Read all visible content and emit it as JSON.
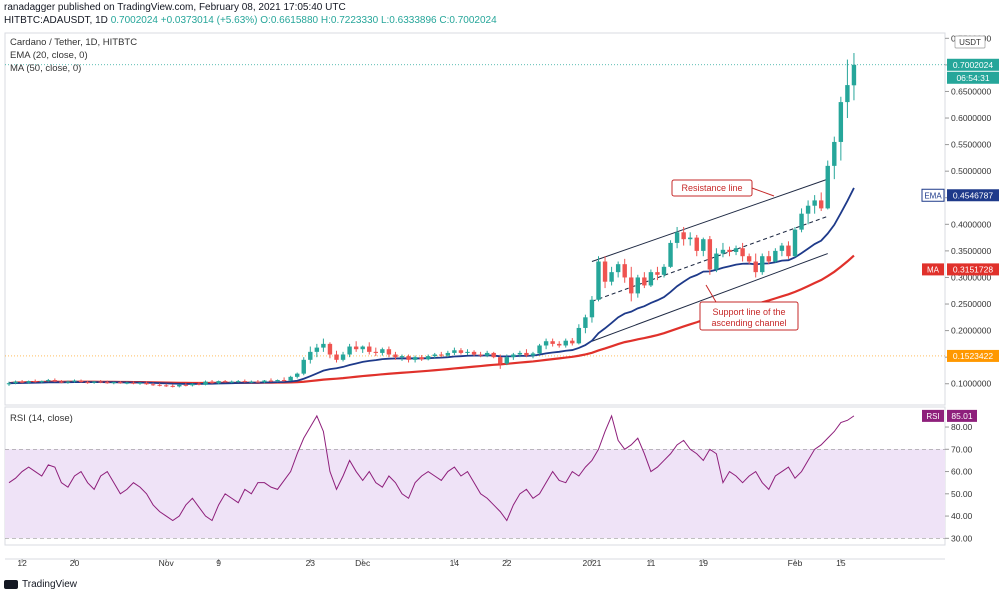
{
  "header": {
    "published_line": "ranadagger published on TradingView.com, February 08, 2021 17:05:40 UTC",
    "symbol": "HITBTC:ADAUSDT, 1D",
    "last": "0.7002024",
    "change": "+0.0373014 (+5.63%)",
    "open": "O:0.6615880",
    "high": "H:0.7223330",
    "low": "L:0.6333896",
    "close": "C:0.7002024"
  },
  "legend": {
    "title": "Cardano / Tether, 1D, HITBTC",
    "ema": "EMA (20, close, 0)",
    "ma": "MA (50, close, 0)",
    "rsi": "RSI (14, close)"
  },
  "footer": {
    "brand": "TradingView"
  },
  "colors": {
    "up": "#26a69a",
    "down": "#ef5350",
    "ema": "#1e3a8a",
    "ma": "#e0312b",
    "rsi_line": "#8e1f7b",
    "rsi_band": "#efe3f7",
    "price_tag": "#26a69a",
    "support": "#ff9800"
  },
  "chart_data": [
    {
      "type": "candlestick",
      "title": "Cardano / Tether, 1D, HITBTC",
      "yunit": "USDT",
      "ylim": [
        0.06,
        0.76
      ],
      "y_ticks": [
        "0.1000000",
        "0.1500000",
        "0.2000000",
        "0.2500000",
        "0.3000000",
        "0.3500000",
        "0.4000000",
        "0.4500000",
        "0.5000000",
        "0.5500000",
        "0.6000000",
        "0.6500000",
        "0.7000000",
        "0.7500000"
      ],
      "x_ticks": [
        "12",
        "20",
        "Nov",
        "9",
        "23",
        "Dec",
        "14",
        "22",
        "2021",
        "11",
        "19",
        "Feb",
        "15"
      ],
      "candles": [
        {
          "o": 0.099,
          "h": 0.104,
          "l": 0.096,
          "c": 0.101
        },
        {
          "o": 0.101,
          "h": 0.106,
          "l": 0.099,
          "c": 0.104
        },
        {
          "o": 0.104,
          "h": 0.107,
          "l": 0.101,
          "c": 0.102
        },
        {
          "o": 0.102,
          "h": 0.106,
          "l": 0.1,
          "c": 0.105
        },
        {
          "o": 0.105,
          "h": 0.108,
          "l": 0.102,
          "c": 0.103
        },
        {
          "o": 0.103,
          "h": 0.106,
          "l": 0.101,
          "c": 0.105
        },
        {
          "o": 0.105,
          "h": 0.109,
          "l": 0.103,
          "c": 0.107
        },
        {
          "o": 0.107,
          "h": 0.11,
          "l": 0.103,
          "c": 0.104
        },
        {
          "o": 0.104,
          "h": 0.107,
          "l": 0.101,
          "c": 0.102
        },
        {
          "o": 0.102,
          "h": 0.106,
          "l": 0.1,
          "c": 0.104
        },
        {
          "o": 0.104,
          "h": 0.108,
          "l": 0.102,
          "c": 0.106
        },
        {
          "o": 0.106,
          "h": 0.108,
          "l": 0.102,
          "c": 0.103
        },
        {
          "o": 0.103,
          "h": 0.106,
          "l": 0.1,
          "c": 0.102
        },
        {
          "o": 0.102,
          "h": 0.105,
          "l": 0.1,
          "c": 0.104
        },
        {
          "o": 0.104,
          "h": 0.107,
          "l": 0.101,
          "c": 0.103
        },
        {
          "o": 0.103,
          "h": 0.106,
          "l": 0.1,
          "c": 0.101
        },
        {
          "o": 0.101,
          "h": 0.104,
          "l": 0.099,
          "c": 0.103
        },
        {
          "o": 0.103,
          "h": 0.105,
          "l": 0.1,
          "c": 0.101
        },
        {
          "o": 0.101,
          "h": 0.104,
          "l": 0.099,
          "c": 0.102
        },
        {
          "o": 0.102,
          "h": 0.104,
          "l": 0.099,
          "c": 0.1
        },
        {
          "o": 0.1,
          "h": 0.103,
          "l": 0.098,
          "c": 0.102
        },
        {
          "o": 0.102,
          "h": 0.104,
          "l": 0.098,
          "c": 0.099
        },
        {
          "o": 0.099,
          "h": 0.102,
          "l": 0.096,
          "c": 0.098
        },
        {
          "o": 0.098,
          "h": 0.101,
          "l": 0.095,
          "c": 0.097
        },
        {
          "o": 0.097,
          "h": 0.1,
          "l": 0.094,
          "c": 0.096
        },
        {
          "o": 0.096,
          "h": 0.099,
          "l": 0.093,
          "c": 0.095
        },
        {
          "o": 0.095,
          "h": 0.099,
          "l": 0.093,
          "c": 0.098
        },
        {
          "o": 0.098,
          "h": 0.101,
          "l": 0.095,
          "c": 0.097
        },
        {
          "o": 0.097,
          "h": 0.101,
          "l": 0.095,
          "c": 0.1
        },
        {
          "o": 0.1,
          "h": 0.103,
          "l": 0.097,
          "c": 0.098
        },
        {
          "o": 0.098,
          "h": 0.106,
          "l": 0.097,
          "c": 0.104
        },
        {
          "o": 0.104,
          "h": 0.107,
          "l": 0.1,
          "c": 0.101
        },
        {
          "o": 0.101,
          "h": 0.106,
          "l": 0.099,
          "c": 0.105
        },
        {
          "o": 0.105,
          "h": 0.107,
          "l": 0.102,
          "c": 0.103
        },
        {
          "o": 0.103,
          "h": 0.106,
          "l": 0.101,
          "c": 0.104
        },
        {
          "o": 0.104,
          "h": 0.107,
          "l": 0.102,
          "c": 0.105
        },
        {
          "o": 0.105,
          "h": 0.108,
          "l": 0.102,
          "c": 0.103
        },
        {
          "o": 0.103,
          "h": 0.106,
          "l": 0.101,
          "c": 0.104
        },
        {
          "o": 0.104,
          "h": 0.107,
          "l": 0.102,
          "c": 0.103
        },
        {
          "o": 0.103,
          "h": 0.107,
          "l": 0.101,
          "c": 0.106
        },
        {
          "o": 0.106,
          "h": 0.11,
          "l": 0.103,
          "c": 0.105
        },
        {
          "o": 0.105,
          "h": 0.108,
          "l": 0.103,
          "c": 0.107
        },
        {
          "o": 0.107,
          "h": 0.112,
          "l": 0.104,
          "c": 0.106
        },
        {
          "o": 0.106,
          "h": 0.115,
          "l": 0.105,
          "c": 0.113
        },
        {
          "o": 0.113,
          "h": 0.121,
          "l": 0.11,
          "c": 0.119
        },
        {
          "o": 0.119,
          "h": 0.15,
          "l": 0.116,
          "c": 0.145
        },
        {
          "o": 0.145,
          "h": 0.17,
          "l": 0.138,
          "c": 0.16
        },
        {
          "o": 0.16,
          "h": 0.175,
          "l": 0.15,
          "c": 0.168
        },
        {
          "o": 0.168,
          "h": 0.185,
          "l": 0.16,
          "c": 0.175
        },
        {
          "o": 0.175,
          "h": 0.178,
          "l": 0.148,
          "c": 0.155
        },
        {
          "o": 0.155,
          "h": 0.162,
          "l": 0.14,
          "c": 0.145
        },
        {
          "o": 0.145,
          "h": 0.16,
          "l": 0.142,
          "c": 0.155
        },
        {
          "o": 0.155,
          "h": 0.175,
          "l": 0.15,
          "c": 0.17
        },
        {
          "o": 0.17,
          "h": 0.18,
          "l": 0.16,
          "c": 0.165
        },
        {
          "o": 0.165,
          "h": 0.172,
          "l": 0.158,
          "c": 0.17
        },
        {
          "o": 0.17,
          "h": 0.178,
          "l": 0.155,
          "c": 0.16
        },
        {
          "o": 0.16,
          "h": 0.168,
          "l": 0.152,
          "c": 0.158
        },
        {
          "o": 0.158,
          "h": 0.168,
          "l": 0.153,
          "c": 0.165
        },
        {
          "o": 0.165,
          "h": 0.17,
          "l": 0.15,
          "c": 0.155
        },
        {
          "o": 0.155,
          "h": 0.16,
          "l": 0.145,
          "c": 0.15
        },
        {
          "o": 0.15,
          "h": 0.155,
          "l": 0.143,
          "c": 0.152
        },
        {
          "o": 0.152,
          "h": 0.155,
          "l": 0.14,
          "c": 0.145
        },
        {
          "o": 0.145,
          "h": 0.153,
          "l": 0.14,
          "c": 0.15
        },
        {
          "o": 0.15,
          "h": 0.154,
          "l": 0.143,
          "c": 0.146
        },
        {
          "o": 0.146,
          "h": 0.155,
          "l": 0.144,
          "c": 0.152
        },
        {
          "o": 0.152,
          "h": 0.158,
          "l": 0.148,
          "c": 0.155
        },
        {
          "o": 0.155,
          "h": 0.16,
          "l": 0.15,
          "c": 0.153
        },
        {
          "o": 0.153,
          "h": 0.162,
          "l": 0.15,
          "c": 0.158
        },
        {
          "o": 0.158,
          "h": 0.168,
          "l": 0.154,
          "c": 0.163
        },
        {
          "o": 0.163,
          "h": 0.167,
          "l": 0.155,
          "c": 0.158
        },
        {
          "o": 0.158,
          "h": 0.165,
          "l": 0.154,
          "c": 0.16
        },
        {
          "o": 0.16,
          "h": 0.163,
          "l": 0.152,
          "c": 0.155
        },
        {
          "o": 0.155,
          "h": 0.16,
          "l": 0.15,
          "c": 0.153
        },
        {
          "o": 0.153,
          "h": 0.162,
          "l": 0.15,
          "c": 0.158
        },
        {
          "o": 0.158,
          "h": 0.16,
          "l": 0.148,
          "c": 0.15
        },
        {
          "o": 0.15,
          "h": 0.155,
          "l": 0.128,
          "c": 0.138
        },
        {
          "o": 0.138,
          "h": 0.155,
          "l": 0.135,
          "c": 0.15
        },
        {
          "o": 0.15,
          "h": 0.158,
          "l": 0.145,
          "c": 0.155
        },
        {
          "o": 0.155,
          "h": 0.162,
          "l": 0.15,
          "c": 0.158
        },
        {
          "o": 0.158,
          "h": 0.165,
          "l": 0.15,
          "c": 0.153
        },
        {
          "o": 0.153,
          "h": 0.16,
          "l": 0.148,
          "c": 0.157
        },
        {
          "o": 0.157,
          "h": 0.175,
          "l": 0.155,
          "c": 0.172
        },
        {
          "o": 0.172,
          "h": 0.185,
          "l": 0.165,
          "c": 0.18
        },
        {
          "o": 0.18,
          "h": 0.185,
          "l": 0.17,
          "c": 0.175
        },
        {
          "o": 0.175,
          "h": 0.18,
          "l": 0.168,
          "c": 0.172
        },
        {
          "o": 0.172,
          "h": 0.185,
          "l": 0.168,
          "c": 0.181
        },
        {
          "o": 0.181,
          "h": 0.186,
          "l": 0.172,
          "c": 0.176
        },
        {
          "o": 0.176,
          "h": 0.212,
          "l": 0.174,
          "c": 0.205
        },
        {
          "o": 0.205,
          "h": 0.23,
          "l": 0.195,
          "c": 0.225
        },
        {
          "o": 0.225,
          "h": 0.265,
          "l": 0.215,
          "c": 0.258
        },
        {
          "o": 0.258,
          "h": 0.34,
          "l": 0.255,
          "c": 0.33
        },
        {
          "o": 0.33,
          "h": 0.34,
          "l": 0.28,
          "c": 0.292
        },
        {
          "o": 0.292,
          "h": 0.32,
          "l": 0.285,
          "c": 0.31
        },
        {
          "o": 0.31,
          "h": 0.33,
          "l": 0.3,
          "c": 0.325
        },
        {
          "o": 0.325,
          "h": 0.335,
          "l": 0.29,
          "c": 0.3
        },
        {
          "o": 0.3,
          "h": 0.32,
          "l": 0.255,
          "c": 0.27
        },
        {
          "o": 0.27,
          "h": 0.305,
          "l": 0.262,
          "c": 0.3
        },
        {
          "o": 0.3,
          "h": 0.31,
          "l": 0.28,
          "c": 0.285
        },
        {
          "o": 0.285,
          "h": 0.315,
          "l": 0.282,
          "c": 0.31
        },
        {
          "o": 0.31,
          "h": 0.32,
          "l": 0.295,
          "c": 0.305
        },
        {
          "o": 0.305,
          "h": 0.325,
          "l": 0.3,
          "c": 0.32
        },
        {
          "o": 0.32,
          "h": 0.37,
          "l": 0.318,
          "c": 0.365
        },
        {
          "o": 0.365,
          "h": 0.395,
          "l": 0.355,
          "c": 0.385
        },
        {
          "o": 0.385,
          "h": 0.395,
          "l": 0.36,
          "c": 0.372
        },
        {
          "o": 0.372,
          "h": 0.385,
          "l": 0.36,
          "c": 0.375
        },
        {
          "o": 0.375,
          "h": 0.38,
          "l": 0.34,
          "c": 0.35
        },
        {
          "o": 0.35,
          "h": 0.375,
          "l": 0.34,
          "c": 0.372
        },
        {
          "o": 0.372,
          "h": 0.378,
          "l": 0.305,
          "c": 0.315
        },
        {
          "o": 0.315,
          "h": 0.355,
          "l": 0.31,
          "c": 0.345
        },
        {
          "o": 0.345,
          "h": 0.365,
          "l": 0.338,
          "c": 0.352
        },
        {
          "o": 0.352,
          "h": 0.358,
          "l": 0.34,
          "c": 0.348
        },
        {
          "o": 0.348,
          "h": 0.36,
          "l": 0.342,
          "c": 0.355
        },
        {
          "o": 0.355,
          "h": 0.365,
          "l": 0.33,
          "c": 0.34
        },
        {
          "o": 0.34,
          "h": 0.345,
          "l": 0.325,
          "c": 0.33
        },
        {
          "o": 0.33,
          "h": 0.345,
          "l": 0.3,
          "c": 0.31
        },
        {
          "o": 0.31,
          "h": 0.345,
          "l": 0.305,
          "c": 0.34
        },
        {
          "o": 0.34,
          "h": 0.35,
          "l": 0.325,
          "c": 0.33
        },
        {
          "o": 0.33,
          "h": 0.355,
          "l": 0.328,
          "c": 0.35
        },
        {
          "o": 0.35,
          "h": 0.365,
          "l": 0.34,
          "c": 0.36
        },
        {
          "o": 0.36,
          "h": 0.368,
          "l": 0.335,
          "c": 0.34
        },
        {
          "o": 0.34,
          "h": 0.395,
          "l": 0.338,
          "c": 0.39
        },
        {
          "o": 0.39,
          "h": 0.43,
          "l": 0.385,
          "c": 0.42
        },
        {
          "o": 0.42,
          "h": 0.445,
          "l": 0.4,
          "c": 0.435
        },
        {
          "o": 0.435,
          "h": 0.455,
          "l": 0.42,
          "c": 0.445
        },
        {
          "o": 0.445,
          "h": 0.46,
          "l": 0.425,
          "c": 0.43
        },
        {
          "o": 0.43,
          "h": 0.52,
          "l": 0.428,
          "c": 0.51
        },
        {
          "o": 0.51,
          "h": 0.565,
          "l": 0.485,
          "c": 0.555
        },
        {
          "o": 0.555,
          "h": 0.64,
          "l": 0.52,
          "c": 0.63
        },
        {
          "o": 0.63,
          "h": 0.71,
          "l": 0.6,
          "c": 0.662
        },
        {
          "o": 0.661588,
          "h": 0.722333,
          "l": 0.6333896,
          "c": 0.7002024
        }
      ],
      "indicators": [
        {
          "name": "EMA (20, close, 0)",
          "last": "0.4546787"
        },
        {
          "name": "MA (50, close, 0)",
          "last": "0.3151728"
        }
      ],
      "price_labels": {
        "last": "0.7002024",
        "countdown": "06:54:31",
        "ema": "0.4546787",
        "ma": "0.3151728",
        "level": "0.1523422",
        "ema_tag": "EMA",
        "ma_tag": "MA",
        "unit_tag": "USDT"
      },
      "horizontal_level": 0.1523422,
      "channel": {
        "resistance": [
          [
            89,
            0.33
          ],
          [
            125,
            0.485
          ]
        ],
        "support": [
          [
            89,
            0.18
          ],
          [
            125,
            0.345
          ]
        ],
        "midline": [
          [
            89,
            0.255
          ],
          [
            125,
            0.415
          ]
        ]
      },
      "annotations": [
        "Resistance line",
        "Support line of the\nascending channel"
      ]
    },
    {
      "type": "line",
      "title": "RSI (14, close)",
      "ylim": [
        27,
        89
      ],
      "y_ticks": [
        "30.00",
        "40.00",
        "50.00",
        "60.00",
        "70.00",
        "80.00"
      ],
      "band": [
        30,
        70
      ],
      "last": "85.01",
      "last_tag": "RSI",
      "values": [
        55,
        57,
        60,
        62,
        60,
        58,
        63,
        62,
        55,
        53,
        58,
        60,
        55,
        52,
        58,
        60,
        55,
        50,
        52,
        55,
        53,
        50,
        45,
        42,
        40,
        38,
        40,
        45,
        48,
        44,
        40,
        38,
        45,
        50,
        48,
        46,
        52,
        50,
        55,
        55,
        53,
        52,
        56,
        60,
        68,
        75,
        80,
        85,
        78,
        60,
        52,
        58,
        65,
        60,
        56,
        60,
        55,
        53,
        58,
        55,
        50,
        48,
        55,
        58,
        60,
        58,
        56,
        60,
        62,
        58,
        60,
        55,
        50,
        48,
        45,
        42,
        38,
        45,
        50,
        52,
        48,
        50,
        55,
        60,
        56,
        55,
        60,
        58,
        62,
        65,
        70,
        78,
        85,
        74,
        70,
        72,
        75,
        68,
        60,
        62,
        65,
        68,
        72,
        74,
        70,
        68,
        65,
        70,
        68,
        55,
        60,
        58,
        55,
        58,
        60,
        55,
        52,
        58,
        60,
        62,
        57,
        60,
        65,
        70,
        72,
        75,
        78,
        82,
        83,
        85.01
      ]
    }
  ]
}
